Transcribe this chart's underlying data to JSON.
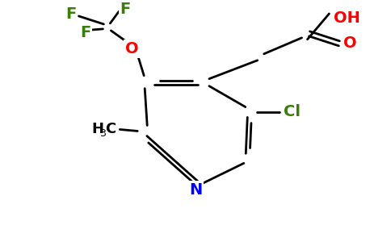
{
  "background_color": "#ffffff",
  "bond_color": "#000000",
  "atom_colors": {
    "F": "#3a7d0a",
    "O": "#ff0000",
    "N": "#0000ff",
    "Cl": "#3a7d0a",
    "C": "#000000",
    "H": "#000000"
  },
  "figsize": [
    4.84,
    3.0
  ],
  "dpi": 100
}
